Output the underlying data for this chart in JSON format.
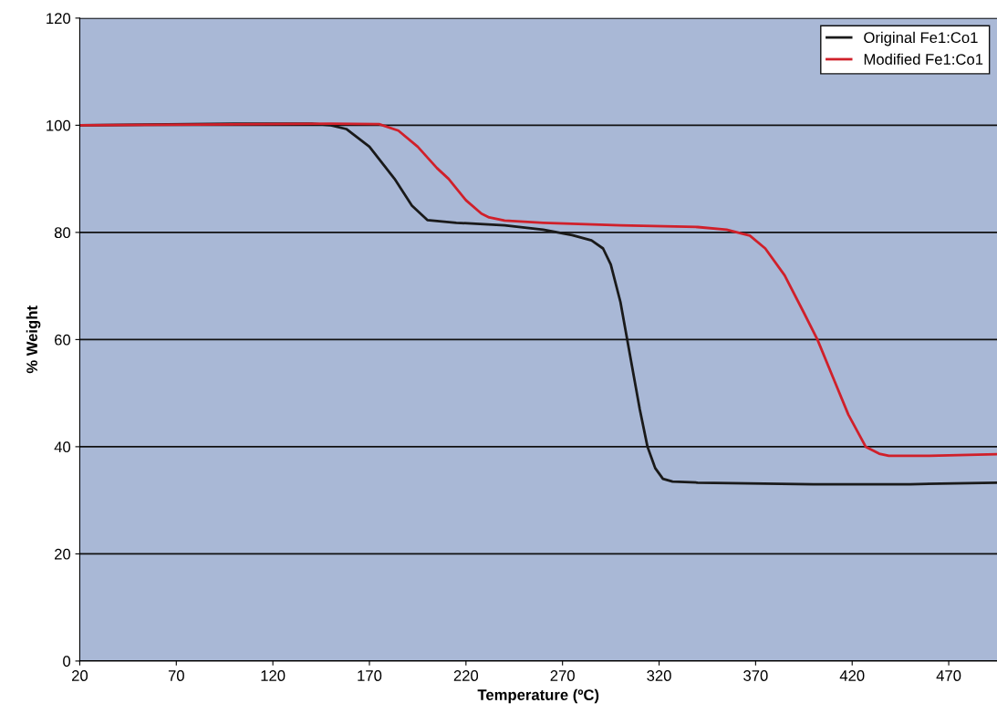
{
  "chart_data": {
    "type": "line",
    "xlabel": "Temperature (ºC)",
    "ylabel": "% Weight",
    "xlim": [
      20,
      495
    ],
    "xticks": [
      20,
      70,
      120,
      170,
      220,
      270,
      320,
      370,
      420,
      470
    ],
    "ylim": [
      0,
      120
    ],
    "yticks": [
      0,
      20,
      40,
      60,
      80,
      100,
      120
    ],
    "grid": "y",
    "legend": "top right",
    "series": [
      {
        "name": "Original Fe1:Co1",
        "color": "#1a1a1a",
        "x": [
          20,
          100,
          140,
          150,
          158,
          170,
          183,
          192,
          200,
          215,
          240,
          260,
          275,
          285,
          291,
          295,
          300,
          303,
          306,
          310,
          314,
          318,
          322,
          327,
          340,
          400,
          450,
          495
        ],
        "values": [
          100,
          100.3,
          100.3,
          100,
          99.3,
          96,
          90,
          85,
          82.3,
          81.8,
          81.3,
          80.5,
          79.5,
          78.5,
          77,
          74,
          67,
          61,
          55,
          47,
          40,
          36,
          34,
          33.5,
          33.3,
          33,
          33,
          33.3
        ]
      },
      {
        "name": "Modified Fe1:Co1",
        "color": "#d0202a",
        "x": [
          20,
          150,
          175,
          185,
          195,
          205,
          211,
          220,
          228,
          232,
          240,
          260,
          300,
          340,
          355,
          367,
          375,
          385,
          395,
          402,
          410,
          418,
          427,
          434,
          439,
          460,
          495
        ],
        "values": [
          100,
          100.3,
          100.2,
          99,
          96,
          92,
          90,
          86,
          83.5,
          82.8,
          82.2,
          81.8,
          81.3,
          81,
          80.5,
          79.4,
          77,
          72,
          65,
          60,
          53,
          46,
          40,
          38.7,
          38.3,
          38.3,
          38.6
        ]
      }
    ]
  }
}
